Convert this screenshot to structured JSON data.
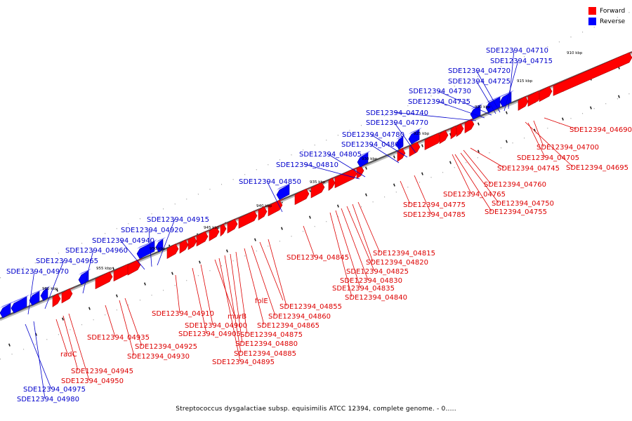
{
  "legend": {
    "forward_label": "Forward",
    "reverse_label": "Reverse",
    "forward_color": "#ff0000",
    "reverse_color": "#0000ff"
  },
  "caption": "Streptococcus dysgalactiae subsp. equisimilis ATCC 12394, complete genome. - 0.....",
  "ticks": [
    "910 kbp",
    "915 kbp",
    "920 kbp",
    "925 kbp",
    "930 kbp",
    "935 kbp",
    "940 kbp",
    "945 kbp",
    "950 kbp",
    "955 kbp",
    "960 kbp"
  ],
  "forward_labels": [
    "SDE12394_04690",
    "SDE12394_04700",
    "SDE12394_04705",
    "SDE12394_04695",
    "SDE12394_04745",
    "SDE12394_04760",
    "SDE12394_04765",
    "SDE12394_04750",
    "SDE12394_04755",
    "SDE12394_04775",
    "SDE12394_04785",
    "SDE12394_04815",
    "SDE12394_04820",
    "SDE12394_04825",
    "SDE12394_04830",
    "SDE12394_04835",
    "SDE12394_04840",
    "SDE12394_04845",
    "SDE12394_04855",
    "folE",
    "SDE12394_04860",
    "SDE12394_04865",
    "SDE12394_04875",
    "SDE12394_04880",
    "SDE12394_04885",
    "SDE12394_04895",
    "murB",
    "SDE12394_04900",
    "SDE12394_04905",
    "SDE12394_04910",
    "SDE12394_04925",
    "SDE12394_04930",
    "SDE12394_04935",
    "radC",
    "SDE12394_04945",
    "SDE12394_04950"
  ],
  "reverse_labels": [
    "SDE12394_04710",
    "SDE12394_04715",
    "SDE12394_04720",
    "SDE12394_04725",
    "SDE12394_04730",
    "SDE12394_04735",
    "SDE12394_04740",
    "SDE12394_04770",
    "SDE12394_04780",
    "SDE12394_04800",
    "SDE12394_04805",
    "SDE12394_04810",
    "SDE12394_04850",
    "SDE12394_04915",
    "SDE12394_04920",
    "SDE12394_04940",
    "SDE12394_04960",
    "SDE12394_04965",
    "SDE12394_04970",
    "SDE12394_04975",
    "SDE12394_04980"
  ]
}
